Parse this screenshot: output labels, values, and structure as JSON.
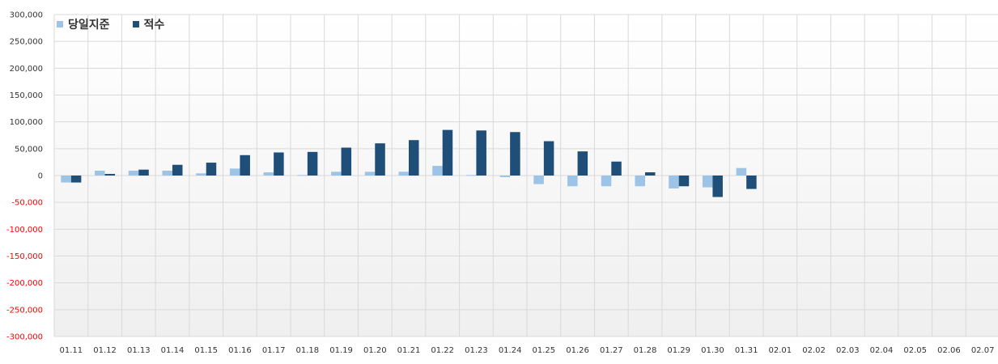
{
  "chart_data": {
    "type": "bar",
    "categories": [
      "01.11",
      "01.12",
      "01.13",
      "01.14",
      "01.15",
      "01.16",
      "01.17",
      "01.18",
      "01.19",
      "01.20",
      "01.21",
      "01.22",
      "01.23",
      "01.24",
      "01.25",
      "01.26",
      "01.27",
      "01.28",
      "01.29",
      "01.30",
      "01.31",
      "02.01",
      "02.02",
      "02.03",
      "02.04",
      "02.05",
      "02.06",
      "02.07"
    ],
    "series": [
      {
        "name": "당일지준",
        "color": "#9dc3e6",
        "values": [
          -13000,
          9000,
          9000,
          9000,
          4000,
          13000,
          6000,
          1000,
          7000,
          7000,
          7000,
          18000,
          1000,
          -3000,
          -16000,
          -20000,
          -20000,
          -20000,
          -24000,
          -22000,
          14000,
          null,
          null,
          null,
          null,
          null,
          null,
          null
        ]
      },
      {
        "name": "적수",
        "color": "#1f4e79",
        "values": [
          -13000,
          3000,
          11000,
          20000,
          24000,
          38000,
          43000,
          44000,
          52000,
          60000,
          66000,
          85000,
          84000,
          81000,
          64000,
          45000,
          26000,
          6000,
          -20000,
          -40000,
          -25000,
          null,
          null,
          null,
          null,
          null,
          null,
          null
        ]
      }
    ],
    "yticks": [
      "300,000",
      "250,000",
      "200,000",
      "150,000",
      "100,000",
      "50,000",
      "0",
      "-50,000",
      "-100,000",
      "-150,000",
      "-200,000",
      "-250,000",
      "-300,000"
    ],
    "ylim": [
      -300000,
      300000
    ],
    "negative_tick_color": "#ff0000",
    "grid": true,
    "legend_position": "top-left"
  }
}
